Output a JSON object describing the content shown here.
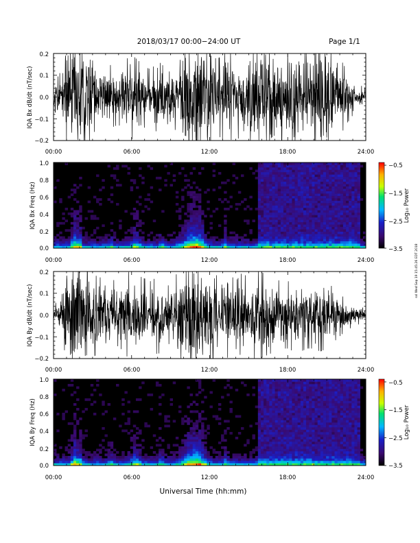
{
  "header": {
    "title": "2018/03/17   00:00−24:00 UT",
    "page": "Page 1/1"
  },
  "footer": {
    "xlabel": "Universal Time (hh:mm)"
  },
  "side_stamp": "ssl Wed Sep 19 15:45:26 EDT 2018",
  "colors": {
    "waveform": "#000000",
    "spectrogram_background": "#000000",
    "colorbar": [
      "#000000",
      "#3a0a6e",
      "#1a20c8",
      "#00b7ff",
      "#00e070",
      "#c8ff00",
      "#ffb000",
      "#ff0000"
    ]
  },
  "chart_data": [
    {
      "type": "line",
      "panel": "bx-waveform",
      "ylabel": "IQA Bx dB/dt (nT/sec)",
      "xlim": [
        0,
        24
      ],
      "ylim": [
        -0.2,
        0.2
      ],
      "x_ticks": [
        "00:00",
        "06:00",
        "12:00",
        "18:00",
        "24:00"
      ],
      "y_ticks": [
        "−0.2",
        "−0.1",
        "0.0",
        "0.1",
        "0.2"
      ],
      "envelope": {
        "hours": [
          0,
          0.5,
          1,
          1.5,
          2,
          2.5,
          3,
          3.5,
          4,
          4.5,
          5,
          5.5,
          6,
          6.5,
          7,
          7.5,
          8,
          8.5,
          9,
          9.5,
          10,
          10.5,
          11,
          11.5,
          12,
          12.5,
          13,
          13.5,
          14,
          14.5,
          15,
          15.5,
          16,
          16.5,
          17,
          17.5,
          18,
          18.5,
          19,
          19.5,
          20,
          20.5,
          21,
          21.5,
          22,
          22.5,
          23,
          23.5,
          24
        ],
        "amplitude": [
          0.04,
          0.08,
          0.2,
          0.2,
          0.2,
          0.2,
          0.12,
          0.1,
          0.12,
          0.1,
          0.09,
          0.12,
          0.14,
          0.12,
          0.1,
          0.09,
          0.12,
          0.1,
          0.08,
          0.12,
          0.2,
          0.2,
          0.2,
          0.2,
          0.2,
          0.12,
          0.14,
          0.15,
          0.12,
          0.16,
          0.14,
          0.18,
          0.2,
          0.2,
          0.16,
          0.15,
          0.15,
          0.18,
          0.18,
          0.16,
          0.17,
          0.19,
          0.2,
          0.17,
          0.13,
          0.09,
          0.06,
          0.04,
          0.03
        ]
      }
    },
    {
      "type": "heatmap",
      "panel": "bx-spectrogram",
      "ylabel": "IQA Bx Freq (Hz)",
      "xlim": [
        0,
        24
      ],
      "ylim": [
        0,
        1.0
      ],
      "x_ticks": [
        "00:00",
        "06:00",
        "12:00",
        "18:00",
        "24:00"
      ],
      "y_ticks": [
        "0.0",
        "0.2",
        "0.4",
        "0.6",
        "0.8",
        "1.0"
      ],
      "colorbar": {
        "label": "Log₁₀ Power",
        "range": [
          -3.5,
          -0.5
        ],
        "ticks": [
          "−0.5",
          "−1.5",
          "−2.5",
          "−3.5"
        ]
      }
    },
    {
      "type": "line",
      "panel": "by-waveform",
      "ylabel": "IQA By dB/dt (nT/sec)",
      "xlim": [
        0,
        24
      ],
      "ylim": [
        -0.2,
        0.2
      ],
      "x_ticks": [
        "00:00",
        "06:00",
        "12:00",
        "18:00",
        "24:00"
      ],
      "y_ticks": [
        "−0.2",
        "−0.1",
        "0.0",
        "0.1",
        "0.2"
      ],
      "envelope": {
        "hours": [
          0,
          0.5,
          1,
          1.5,
          2,
          2.5,
          3,
          3.5,
          4,
          4.5,
          5,
          5.5,
          6,
          6.5,
          7,
          7.5,
          8,
          8.5,
          9,
          9.5,
          10,
          10.5,
          11,
          11.5,
          12,
          12.5,
          13,
          13.5,
          14,
          14.5,
          15,
          15.5,
          16,
          16.5,
          17,
          17.5,
          18,
          18.5,
          19,
          19.5,
          20,
          20.5,
          21,
          21.5,
          22,
          22.5,
          23,
          23.5,
          24
        ],
        "amplitude": [
          0.03,
          0.06,
          0.2,
          0.2,
          0.2,
          0.18,
          0.14,
          0.12,
          0.14,
          0.12,
          0.1,
          0.13,
          0.15,
          0.13,
          0.12,
          0.11,
          0.13,
          0.11,
          0.09,
          0.14,
          0.2,
          0.2,
          0.2,
          0.2,
          0.2,
          0.13,
          0.14,
          0.14,
          0.11,
          0.14,
          0.12,
          0.15,
          0.14,
          0.13,
          0.12,
          0.11,
          0.11,
          0.12,
          0.12,
          0.11,
          0.11,
          0.12,
          0.11,
          0.09,
          0.07,
          0.05,
          0.04,
          0.03,
          0.02
        ]
      }
    },
    {
      "type": "heatmap",
      "panel": "by-spectrogram",
      "ylabel": "IQA By Freq (Hz)",
      "xlim": [
        0,
        24
      ],
      "ylim": [
        0,
        1.0
      ],
      "x_ticks": [
        "00:00",
        "06:00",
        "12:00",
        "18:00",
        "24:00"
      ],
      "y_ticks": [
        "0.0",
        "0.2",
        "0.4",
        "0.6",
        "0.8",
        "1.0"
      ],
      "colorbar": {
        "label": "Log₁₀ Power",
        "range": [
          -3.5,
          -0.5
        ],
        "ticks": [
          "−0.5",
          "−1.5",
          "−2.5",
          "−3.5"
        ]
      }
    }
  ]
}
